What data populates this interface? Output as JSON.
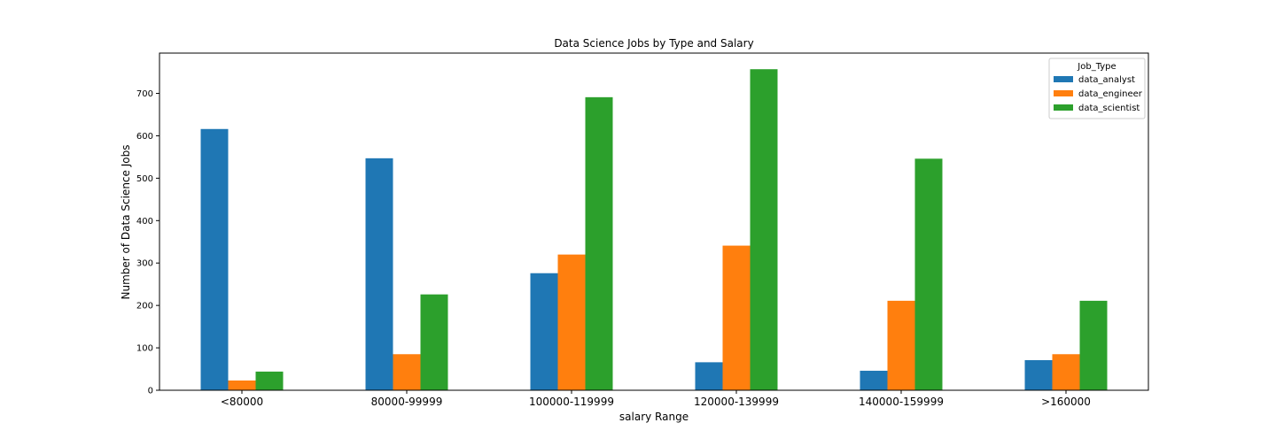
{
  "chart_data": {
    "type": "bar",
    "title": "Data Science Jobs by Type and Salary",
    "xlabel": "salary Range",
    "ylabel": "Number of Data Science Jobs",
    "categories": [
      "<80000",
      "80000-99999",
      "100000-119999",
      "120000-139999",
      "140000-159999",
      ">160000"
    ],
    "yticks": [
      0,
      100,
      200,
      300,
      400,
      500,
      600,
      700
    ],
    "ylim": [
      0,
      795
    ],
    "grid": false,
    "legend": {
      "title": "Job_Type",
      "placement": "top-right"
    },
    "series": [
      {
        "name": "data_analyst",
        "color": "#1f77b4",
        "values": [
          616,
          547,
          276,
          66,
          46,
          71
        ]
      },
      {
        "name": "data_engineer",
        "color": "#ff7f0e",
        "values": [
          23,
          85,
          320,
          341,
          211,
          85
        ]
      },
      {
        "name": "data_scientist",
        "color": "#2ca02c",
        "values": [
          44,
          226,
          691,
          757,
          546,
          211
        ]
      }
    ]
  }
}
